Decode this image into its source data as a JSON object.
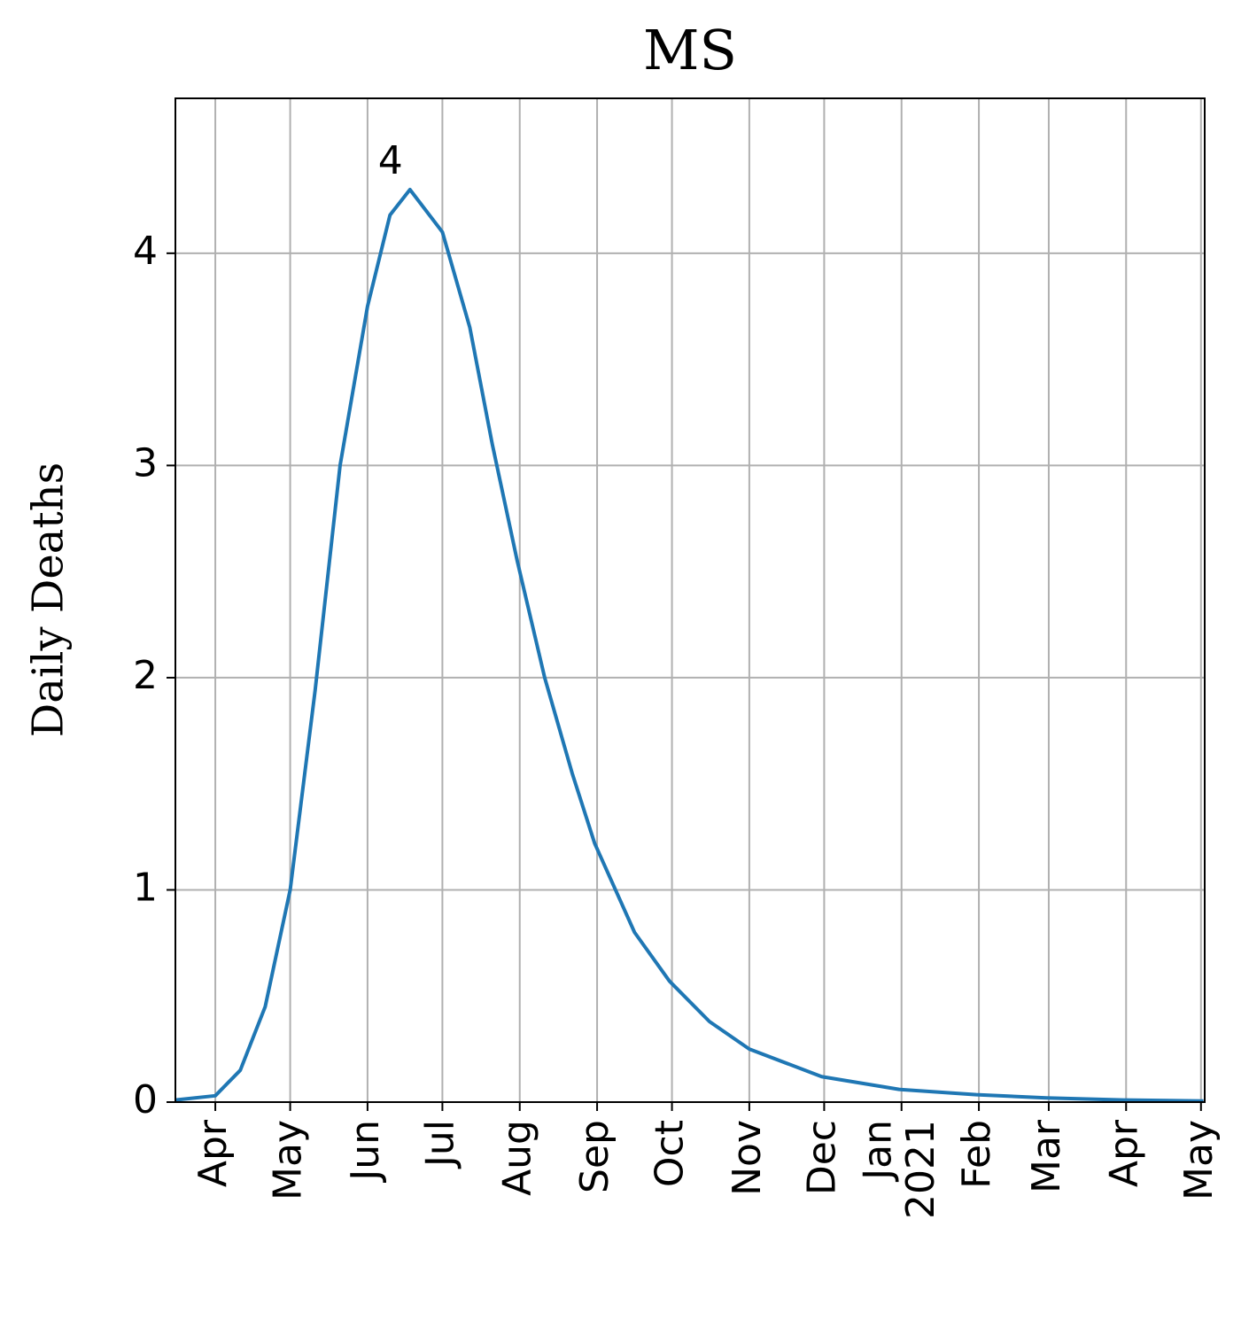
{
  "chart_data": {
    "type": "line",
    "title": "MS",
    "ylabel": "Daily Deaths",
    "x": [
      0,
      16,
      26,
      36,
      46,
      56,
      66,
      77,
      86,
      94,
      107,
      118,
      127,
      137,
      148,
      159,
      168,
      184,
      198,
      214,
      230,
      259,
      290,
      321,
      349,
      380,
      412
    ],
    "series": [
      {
        "name": "MS",
        "color": "#1f77b4",
        "values": [
          0.01,
          0.03,
          0.15,
          0.45,
          1.0,
          1.94,
          3.0,
          3.75,
          4.18,
          4.3,
          4.1,
          3.65,
          3.1,
          2.55,
          2.0,
          1.55,
          1.22,
          0.8,
          0.57,
          0.38,
          0.25,
          0.12,
          0.06,
          0.035,
          0.02,
          0.01,
          0.005
        ]
      }
    ],
    "peak": {
      "x": 94,
      "value": 4.3,
      "label": "4"
    },
    "xlim": [
      0,
      412.5
    ],
    "ylim": [
      0,
      4.73
    ],
    "xticks": [
      {
        "value": 16,
        "label": "Apr"
      },
      {
        "value": 46,
        "label": "May"
      },
      {
        "value": 77,
        "label": "Jun"
      },
      {
        "value": 107,
        "label": "Jul"
      },
      {
        "value": 138,
        "label": "Aug"
      },
      {
        "value": 169,
        "label": "Sep"
      },
      {
        "value": 199,
        "label": "Oct"
      },
      {
        "value": 230,
        "label": "Nov"
      },
      {
        "value": 260,
        "label": "Dec"
      },
      {
        "value": 291,
        "label": "Jan\n2021"
      },
      {
        "value": 322,
        "label": "Feb"
      },
      {
        "value": 350,
        "label": "Mar"
      },
      {
        "value": 381,
        "label": "Apr"
      },
      {
        "value": 411,
        "label": "May"
      }
    ],
    "yticks": [
      0,
      1,
      2,
      3,
      4
    ],
    "grid": true
  }
}
